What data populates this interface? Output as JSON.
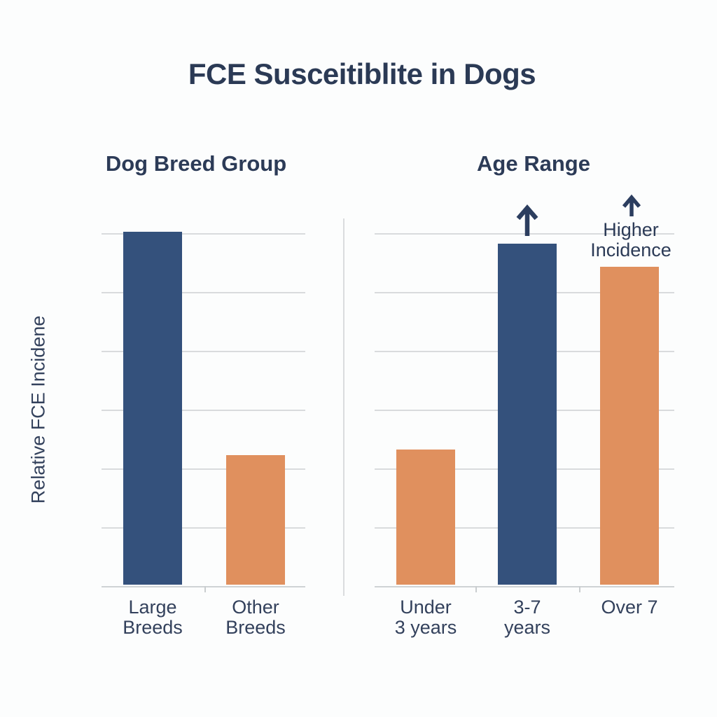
{
  "title": "FCE Susceitiblite in Dogs",
  "y_axis_label": "Relative FCE Incidene",
  "colors": {
    "bar_blue": "#34517C",
    "bar_orange": "#E0905E",
    "text_navy": "#2B3A55",
    "gridline_gray": "#D9DBDD",
    "arrow_navy": "#2C3E5F",
    "background": "#FCFDFD"
  },
  "chart_data": [
    {
      "type": "bar",
      "panel_title": "Dog Breed Group",
      "categories": [
        "Large Breeds",
        "Other Breeds"
      ],
      "categories_multiline": [
        [
          "Large",
          "Breeds"
        ],
        [
          "Other",
          "Breeds"
        ]
      ],
      "values": [
        6.0,
        2.2
      ],
      "bar_colors": [
        "#34517C",
        "#E0905E"
      ],
      "ylabel": "Relative FCE Incidene",
      "xlabel": "",
      "ylim": [
        0,
        6
      ],
      "grid": "horizontal gridlines, unlabeled, every 1 relative unit",
      "legend": "none"
    },
    {
      "type": "bar",
      "panel_title": "Age Range",
      "categories": [
        "Under 3 years",
        "3-7 years",
        "Over 7"
      ],
      "categories_multiline": [
        [
          "Under",
          "3 years"
        ],
        [
          "3-7",
          "years"
        ],
        [
          "Over 7"
        ]
      ],
      "values": [
        2.3,
        5.8,
        5.4
      ],
      "bar_colors": [
        "#E0905E",
        "#34517C",
        "#E0905E"
      ],
      "ylabel": "Relative FCE Incidene",
      "xlabel": "",
      "ylim": [
        0,
        6
      ],
      "grid": "horizontal gridlines, unlabeled, every 1 relative unit",
      "legend": "none",
      "annotations": [
        {
          "type": "up-arrow",
          "target": "3-7 years"
        },
        {
          "type": "up-arrow",
          "target": "Over 7",
          "label": "Higher Incidence",
          "label_lines": [
            "Higher",
            "Incidence"
          ]
        }
      ]
    }
  ]
}
